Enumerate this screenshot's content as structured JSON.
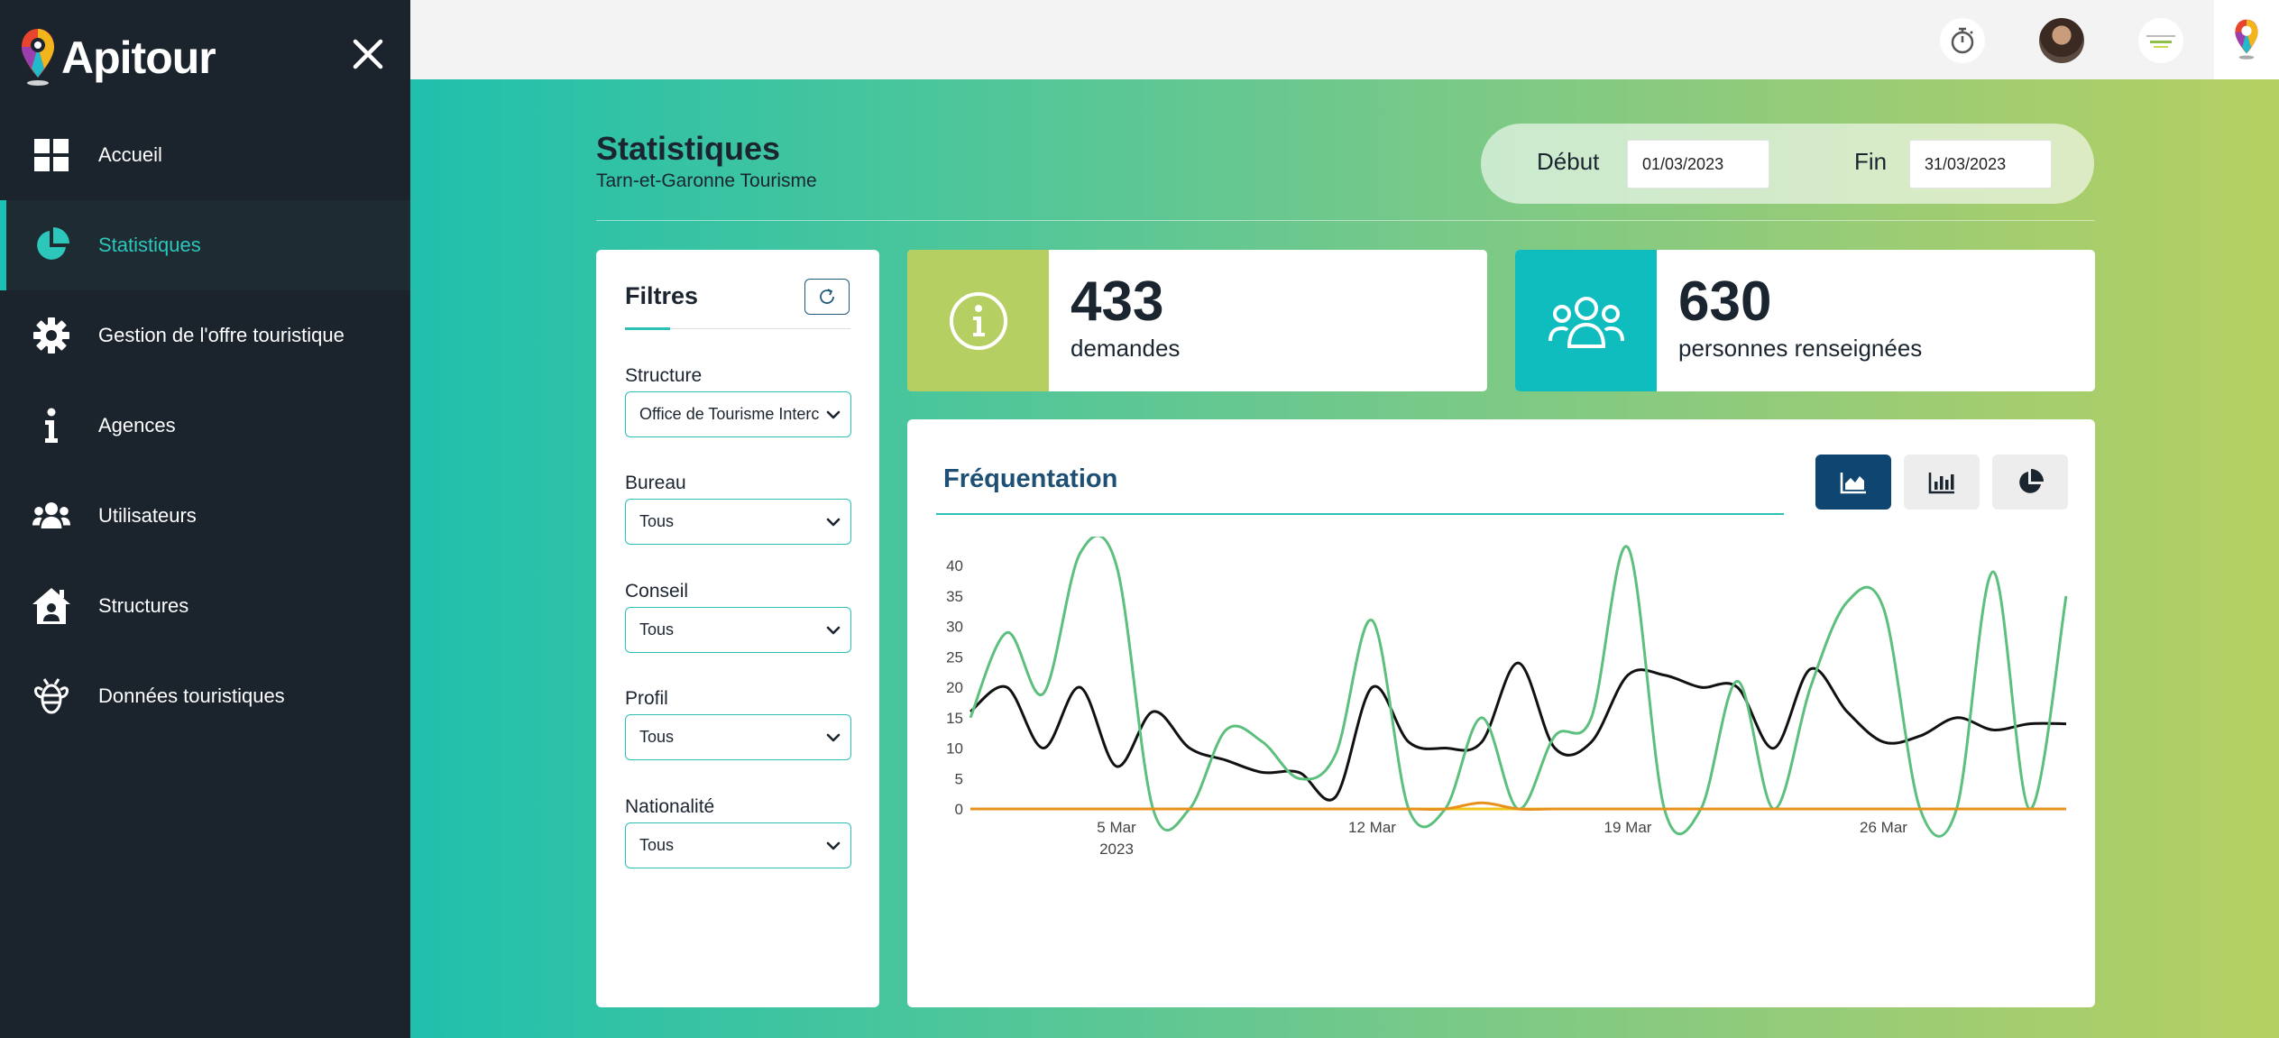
{
  "app": {
    "name": "Apitour"
  },
  "sidebar": {
    "items": [
      {
        "label": "Accueil",
        "icon": "grid-icon",
        "active": false
      },
      {
        "label": "Statistiques",
        "icon": "pie-chart-icon",
        "active": true
      },
      {
        "label": "Gestion de l'offre touristique",
        "icon": "gear-icon",
        "active": false
      },
      {
        "label": "Agences",
        "icon": "info-icon",
        "active": false
      },
      {
        "label": "Utilisateurs",
        "icon": "users-icon",
        "active": false
      },
      {
        "label": "Structures",
        "icon": "house-user-icon",
        "active": false
      },
      {
        "label": "Données touristiques",
        "icon": "bee-icon",
        "active": false
      }
    ]
  },
  "header": {
    "title": "Statistiques",
    "subtitle": "Tarn-et-Garonne Tourisme",
    "start_label": "Début",
    "start_value": "01/03/2023",
    "end_label": "Fin",
    "end_value": "31/03/2023"
  },
  "filters": {
    "title": "Filtres",
    "fields": [
      {
        "label": "Structure",
        "value": "Office de Tourisme Intercommunal"
      },
      {
        "label": "Bureau",
        "value": "Tous"
      },
      {
        "label": "Conseil",
        "value": "Tous"
      },
      {
        "label": "Profil",
        "value": "Tous"
      },
      {
        "label": "Nationalité",
        "value": "Tous"
      }
    ]
  },
  "kpis": [
    {
      "value": "433",
      "label": "demandes",
      "icon": "info-circle-icon",
      "color": "#b6cf62"
    },
    {
      "value": "630",
      "label": "personnes renseignées",
      "icon": "users-icon",
      "color": "#0fbcbe"
    }
  ],
  "chart_section": {
    "title": "Fréquentation",
    "types": [
      "area-chart-icon",
      "bar-chart-icon",
      "pie-chart-icon"
    ],
    "active_type": 0
  },
  "colors": {
    "sidebar_bg": "#1b232c",
    "accent": "#2cc0b6",
    "navy": "#0f4571"
  },
  "chart_data": {
    "type": "line",
    "x": [
      "2023-03-01",
      "2023-03-02",
      "2023-03-03",
      "2023-03-04",
      "2023-03-05",
      "2023-03-06",
      "2023-03-07",
      "2023-03-08",
      "2023-03-09",
      "2023-03-10",
      "2023-03-11",
      "2023-03-12",
      "2023-03-13",
      "2023-03-14",
      "2023-03-15",
      "2023-03-16",
      "2023-03-17",
      "2023-03-18",
      "2023-03-19",
      "2023-03-20",
      "2023-03-21",
      "2023-03-22",
      "2023-03-23",
      "2023-03-24",
      "2023-03-25",
      "2023-03-26",
      "2023-03-27",
      "2023-03-28",
      "2023-03-29",
      "2023-03-30",
      "2023-03-31"
    ],
    "x_ticks": [
      {
        "date": "2023-03-05",
        "label": "5 Mar",
        "sublabel": "2023"
      },
      {
        "date": "2023-03-12",
        "label": "12 Mar"
      },
      {
        "date": "2023-03-19",
        "label": "19 Mar"
      },
      {
        "date": "2023-03-26",
        "label": "26 Mar"
      }
    ],
    "ylim": [
      0,
      43
    ],
    "yticks": [
      0,
      5,
      10,
      15,
      20,
      25,
      30,
      35,
      40
    ],
    "series": [
      {
        "color": "#5cbf7d",
        "values": [
          15,
          29,
          19,
          42,
          40,
          0,
          0,
          13,
          11,
          5,
          9,
          31,
          0,
          0,
          15,
          0,
          12,
          15,
          43,
          0,
          0,
          21,
          0,
          20,
          34,
          33,
          0,
          0,
          39,
          0,
          35
        ]
      },
      {
        "color": "#111111",
        "values": [
          16,
          20,
          10,
          20,
          7,
          16,
          10,
          8,
          6,
          6,
          2,
          20,
          11,
          10,
          11,
          24,
          10,
          11,
          22,
          22,
          20,
          20,
          10,
          23,
          16,
          11,
          12,
          15,
          13,
          14,
          14
        ]
      },
      {
        "color": "#e8901c",
        "values": [
          0,
          0,
          0,
          0,
          0,
          0,
          0,
          0,
          0,
          0,
          0,
          0,
          0,
          0,
          1,
          0,
          0,
          0,
          0,
          0,
          0,
          0,
          0,
          0,
          0,
          0,
          0,
          0,
          0,
          0,
          0
        ]
      },
      {
        "color": "#f0c419",
        "values": [
          0,
          0,
          0,
          0,
          0,
          0,
          0,
          0,
          0,
          0,
          0,
          0,
          0,
          0,
          0,
          0,
          0,
          0,
          0,
          0,
          0,
          0,
          0,
          0,
          0,
          0,
          0,
          0,
          0,
          0,
          0
        ]
      }
    ]
  }
}
